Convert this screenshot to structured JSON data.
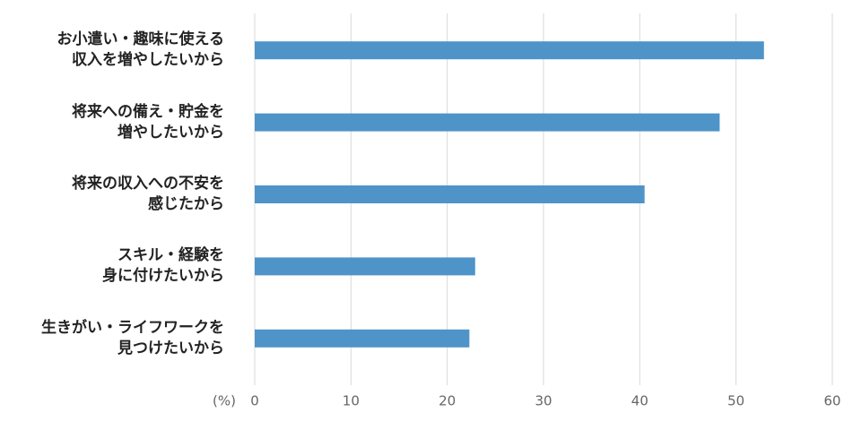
{
  "chart_data": {
    "type": "barh",
    "categories": [
      "お小遣い・趣味に使える\n収入を増やしたいから",
      "将来への備え・貯金を\n増やしたいから",
      "将来の収入への不安を\n感じたから",
      "スキル・経験を\n身に付けたいから",
      "生きがい・ライフワークを\n見つけたいから"
    ],
    "values": [
      52.9,
      48.3,
      40.5,
      22.9,
      22.3
    ],
    "color": "#4f94c8",
    "x_label": "(%)",
    "xlim": [
      0,
      60
    ],
    "xticks": [
      0,
      10,
      20,
      30,
      40,
      50,
      60
    ],
    "grid": true
  }
}
